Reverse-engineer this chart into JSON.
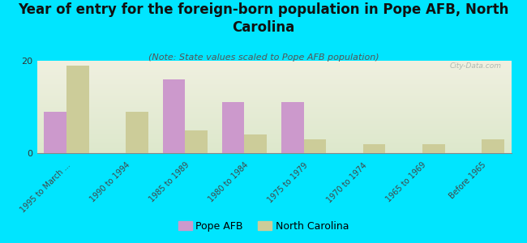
{
  "title": "Year of entry for the foreign-born population in Pope AFB, North\nCarolina",
  "subtitle": "(Note: State values scaled to Pope AFB population)",
  "categories": [
    "1995 to March ...",
    "1990 to 1994",
    "1985 to 1989",
    "1980 to 1984",
    "1975 to 1979",
    "1970 to 1974",
    "1965 to 1969",
    "Before 1965"
  ],
  "pope_afb_values": [
    9,
    0,
    16,
    11,
    11,
    0,
    0,
    0
  ],
  "nc_values": [
    19,
    9,
    5,
    4,
    3,
    2,
    2,
    3
  ],
  "pope_afb_color": "#cc99cc",
  "nc_color": "#cccc99",
  "background_color": "#00e5ff",
  "plot_bg_top": "#dde8cc",
  "plot_bg_bottom": "#f0f0e0",
  "ylim": [
    0,
    20
  ],
  "yticks": [
    0,
    20
  ],
  "bar_width": 0.38,
  "title_fontsize": 12,
  "subtitle_fontsize": 8,
  "tick_label_fontsize": 7,
  "watermark": "City-Data.com"
}
